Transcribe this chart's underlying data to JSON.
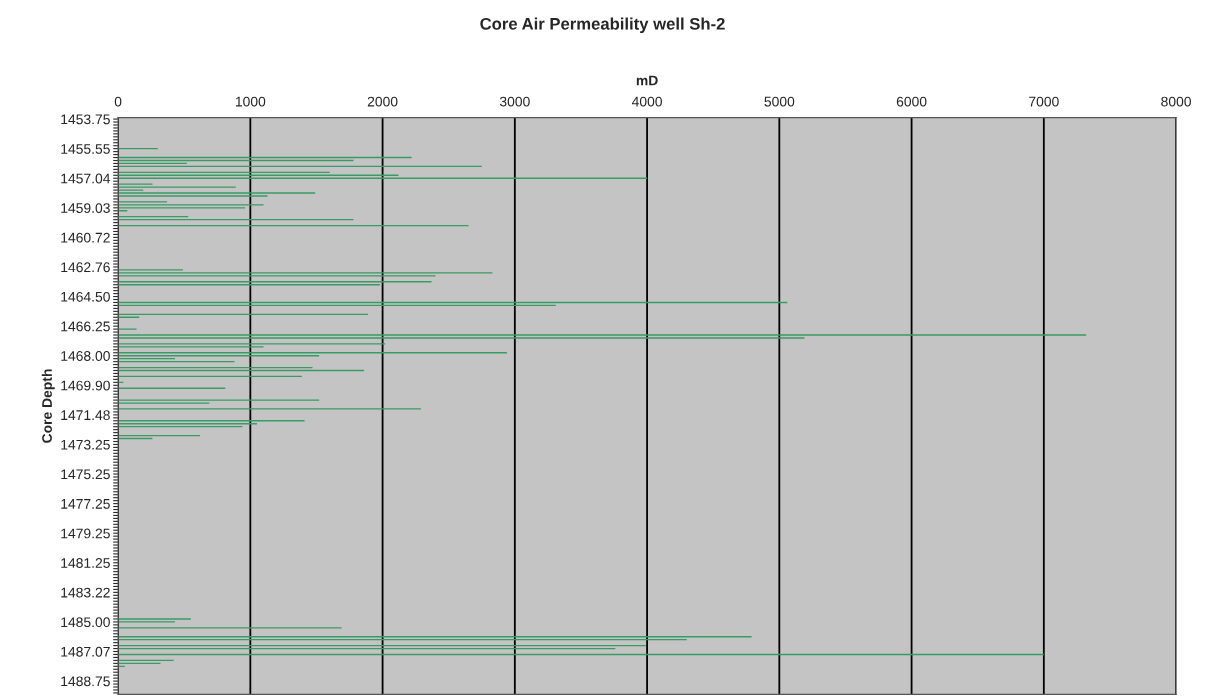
{
  "chart_data": {
    "type": "bar",
    "orientation": "horizontal",
    "title": "Core Air Permeability well Sh-2",
    "xlabel": "mD",
    "ylabel": "Core Depth",
    "color": "#3a9a66",
    "grid": "x",
    "xlim": [
      0,
      8000
    ],
    "xticks": [
      0,
      1000,
      2000,
      3000,
      4000,
      5000,
      6000,
      7000,
      8000
    ],
    "categories": [
      "1453.75",
      null,
      null,
      null,
      null,
      null,
      null,
      null,
      null,
      null,
      "1455.55",
      null,
      null,
      null,
      null,
      null,
      null,
      null,
      null,
      null,
      "1457.04",
      null,
      null,
      null,
      null,
      null,
      null,
      null,
      null,
      null,
      "1459.03",
      null,
      null,
      null,
      null,
      null,
      null,
      null,
      null,
      null,
      "1460.72",
      null,
      null,
      null,
      null,
      null,
      null,
      null,
      null,
      null,
      "1462.76",
      null,
      null,
      null,
      null,
      null,
      null,
      null,
      null,
      null,
      "1464.50",
      null,
      null,
      null,
      null,
      null,
      null,
      null,
      null,
      null,
      "1466.25",
      null,
      null,
      null,
      null,
      null,
      null,
      null,
      null,
      null,
      "1468.00",
      null,
      null,
      null,
      null,
      null,
      null,
      null,
      null,
      null,
      "1469.90",
      null,
      null,
      null,
      null,
      null,
      null,
      null,
      null,
      null,
      "1471.48",
      null,
      null,
      null,
      null,
      null,
      null,
      null,
      null,
      null,
      "1473.25",
      null,
      null,
      null,
      null,
      null,
      null,
      null,
      null,
      null,
      "1475.25",
      null,
      null,
      null,
      null,
      null,
      null,
      null,
      null,
      null,
      "1477.25",
      null,
      null,
      null,
      null,
      null,
      null,
      null,
      null,
      null,
      "1479.25",
      null,
      null,
      null,
      null,
      null,
      null,
      null,
      null,
      null,
      "1481.25",
      null,
      null,
      null,
      null,
      null,
      null,
      null,
      null,
      null,
      "1483.22",
      null,
      null,
      null,
      null,
      null,
      null,
      null,
      null,
      null,
      "1485.00",
      null,
      null,
      null,
      null,
      null,
      null,
      null,
      null,
      null,
      "1487.07",
      null,
      null,
      null,
      null,
      null,
      null,
      null,
      null,
      null,
      "1488.75",
      null,
      null,
      null,
      null
    ],
    "values": [
      null,
      null,
      null,
      null,
      null,
      null,
      null,
      null,
      null,
      null,
      300,
      null,
      null,
      2220,
      1780,
      520,
      2750,
      null,
      1600,
      2120,
      4000,
      null,
      260,
      890,
      190,
      1490,
      1130,
      null,
      370,
      1100,
      960,
      70,
      null,
      530,
      1780,
      null,
      2650,
      null,
      null,
      null,
      null,
      null,
      null,
      null,
      null,
      null,
      null,
      null,
      null,
      null,
      null,
      490,
      2830,
      2400,
      null,
      2370,
      1980,
      null,
      null,
      null,
      null,
      null,
      5060,
      3310,
      null,
      null,
      1890,
      160,
      null,
      null,
      null,
      140,
      null,
      7320,
      5190,
      null,
      2020,
      1100,
      null,
      2940,
      1520,
      430,
      880,
      null,
      1470,
      1860,
      null,
      1390,
      null,
      40,
      null,
      810,
      null,
      null,
      null,
      1520,
      690,
      null,
      2290,
      null,
      null,
      null,
      1410,
      1050,
      940,
      null,
      null,
      620,
      260,
      null,
      null,
      null,
      null,
      null,
      null,
      null,
      null,
      null,
      null,
      null,
      null,
      null,
      null,
      null,
      null,
      null,
      null,
      null,
      null,
      null,
      null,
      null,
      null,
      null,
      null,
      null,
      null,
      null,
      null,
      null,
      null,
      null,
      null,
      null,
      null,
      null,
      null,
      null,
      null,
      null,
      null,
      null,
      null,
      null,
      null,
      null,
      null,
      null,
      null,
      null,
      null,
      null,
      null,
      null,
      null,
      null,
      null,
      null,
      null,
      550,
      430,
      null,
      1690,
      null,
      null,
      4790,
      4300,
      null,
      3990,
      3760,
      null,
      7000,
      null,
      420,
      320,
      50,
      null,
      null,
      null,
      null,
      null,
      null,
      null,
      null,
      null
    ]
  }
}
